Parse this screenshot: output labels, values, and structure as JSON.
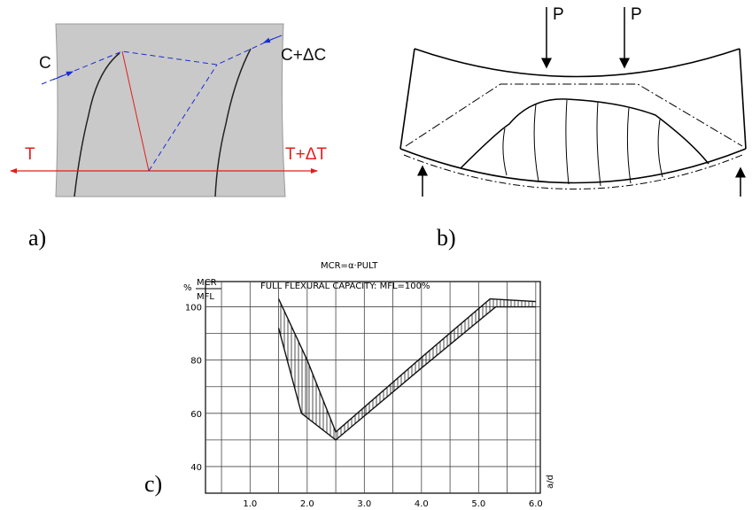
{
  "panel_a": {
    "label": "a)",
    "texts": [
      "C",
      "C+ΔC",
      "T",
      "T+ΔT"
    ]
  },
  "panel_b": {
    "label": "b)",
    "texts": [
      "P",
      "P"
    ]
  },
  "panel_c": {
    "label": "c)"
  },
  "chart_data": {
    "type": "band",
    "annotation": "MCR=α·PULT",
    "title": "FULL  FLEXURAL  CAPACITY: MFL=100%",
    "y_label": "%",
    "y_label_fraction": [
      "MCR",
      "MFL"
    ],
    "x_label": "a/d",
    "xlim": [
      0.22,
      6.08
    ],
    "ylim": [
      30,
      109.5
    ],
    "xticks": [
      {
        "value": 1,
        "label": "1.0"
      },
      {
        "value": 2,
        "label": "2.0"
      },
      {
        "value": 3,
        "label": "3.0"
      },
      {
        "value": 4,
        "label": "4.0"
      },
      {
        "value": 5,
        "label": "5.0"
      },
      {
        "value": 6,
        "label": "6.0"
      }
    ],
    "yticks": [
      40,
      60,
      80,
      100
    ],
    "xgrid_minor": [
      0.5,
      1.5,
      2.5,
      3.5,
      4.5,
      5.5
    ],
    "ygrid_minor": [
      50,
      70,
      90
    ],
    "grid": true,
    "color": "#111111",
    "series": [
      {
        "x": [
          1.5,
          2.0,
          2.5,
          4.0,
          5.2,
          6.0
        ],
        "values": [
          103,
          80,
          53,
          81,
          103,
          102
        ]
      },
      {
        "x": [
          1.5,
          1.9,
          2.5,
          4.0,
          5.3,
          6.0
        ],
        "values": [
          92,
          60,
          50,
          77,
          100,
          100
        ]
      }
    ]
  }
}
